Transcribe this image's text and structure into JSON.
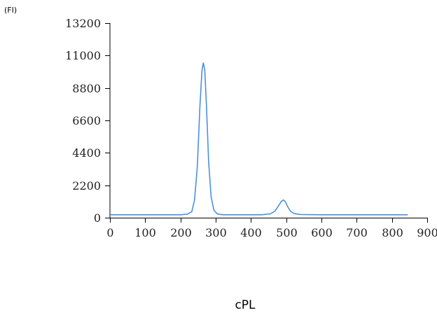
{
  "chart_data": {
    "type": "line",
    "xlabel": "cPL",
    "ylabel": "(FI)",
    "xlim": [
      0,
      900
    ],
    "ylim": [
      0,
      13200
    ],
    "xticks": [
      0,
      100,
      200,
      300,
      400,
      500,
      600,
      700,
      800,
      900
    ],
    "yticks": [
      0,
      2200,
      4400,
      6600,
      8800,
      11000,
      13200
    ],
    "grid": false,
    "series": [
      {
        "color": "#4a90e2",
        "points": [
          [
            0,
            200
          ],
          [
            50,
            200
          ],
          [
            100,
            200
          ],
          [
            150,
            200
          ],
          [
            200,
            200
          ],
          [
            220,
            240
          ],
          [
            232,
            400
          ],
          [
            240,
            1200
          ],
          [
            248,
            3500
          ],
          [
            255,
            7500
          ],
          [
            261,
            10000
          ],
          [
            265,
            10500
          ],
          [
            269,
            10000
          ],
          [
            274,
            7500
          ],
          [
            280,
            3800
          ],
          [
            287,
            1400
          ],
          [
            295,
            500
          ],
          [
            305,
            250
          ],
          [
            320,
            200
          ],
          [
            360,
            200
          ],
          [
            400,
            200
          ],
          [
            430,
            200
          ],
          [
            455,
            260
          ],
          [
            468,
            450
          ],
          [
            478,
            800
          ],
          [
            486,
            1100
          ],
          [
            492,
            1200
          ],
          [
            497,
            1100
          ],
          [
            504,
            750
          ],
          [
            512,
            450
          ],
          [
            522,
            280
          ],
          [
            540,
            220
          ],
          [
            600,
            200
          ],
          [
            700,
            200
          ],
          [
            800,
            200
          ],
          [
            845,
            200
          ]
        ]
      }
    ]
  }
}
